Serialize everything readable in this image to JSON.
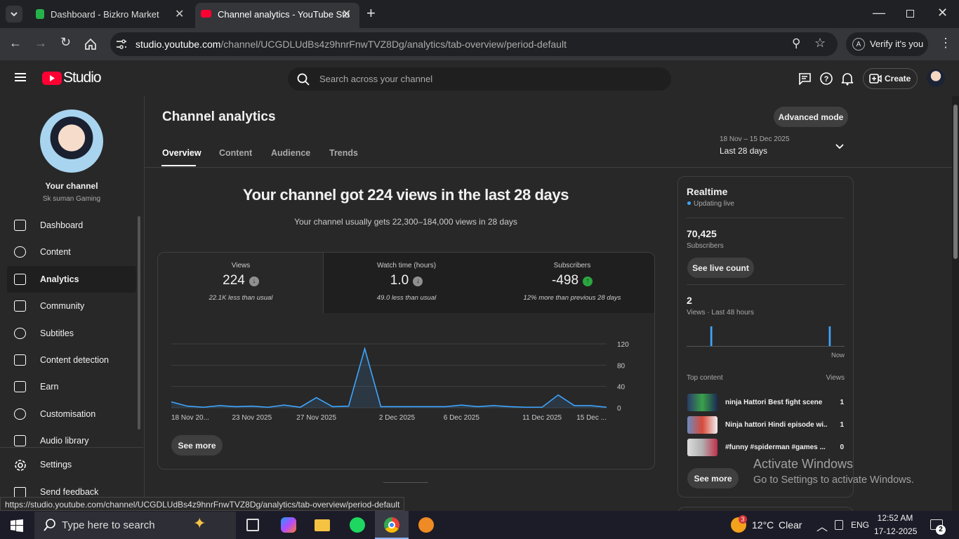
{
  "browser": {
    "tabs": [
      "Dashboard - Bizkro Market",
      "Channel analytics - YouTube Stu"
    ],
    "url_host": "studio.youtube.com",
    "url_path": "/channel/UCGDLUdBs4z9hnrFnwTVZ8Dg/analytics/tab-overview/period-default",
    "profile_letter": "A",
    "verify": "Verify it's you",
    "status_url": "https://studio.youtube.com/channel/UCGDLUdBs4z9hnrFnwTVZ8Dg/analytics/tab-overview/period-default"
  },
  "header": {
    "logo": "Studio",
    "search_placeholder": "Search across your channel",
    "create": "Create"
  },
  "sidebar": {
    "channel_label": "Your channel",
    "channel_name": "Sk suman Gaming",
    "items": [
      "Dashboard",
      "Content",
      "Analytics",
      "Community",
      "Subtitles",
      "Content detection",
      "Earn",
      "Customisation",
      "Audio library"
    ],
    "settings": "Settings",
    "feedback": "Send feedback"
  },
  "page": {
    "title": "Channel analytics",
    "advanced": "Advanced mode",
    "date_range": "18 Nov – 15 Dec 2025",
    "period": "Last 28 days",
    "tabs": [
      "Overview",
      "Content",
      "Audience",
      "Trends"
    ],
    "headline": "Your channel got 224 views in the last 28 days",
    "subline": "Your channel usually gets 22,300–184,000 views in 28 days",
    "metrics": [
      {
        "label": "Views",
        "value": "224",
        "note": "22.1K less than usual"
      },
      {
        "label": "Watch time (hours)",
        "value": "1.0",
        "note": "49.0 less than usual"
      },
      {
        "label": "Subscribers",
        "value": "-498",
        "note": "12% more than previous 28 days"
      }
    ],
    "see_more": "See more"
  },
  "chart_data": [
    {
      "type": "line",
      "color": "#3ea6ff",
      "categories": [
        "18 Nov 20...",
        null,
        null,
        null,
        null,
        "23 Nov 2025",
        null,
        null,
        null,
        "27 Nov 2025",
        null,
        null,
        null,
        null,
        "2 Dec 2025",
        null,
        null,
        null,
        "6 Dec 2025",
        null,
        null,
        null,
        null,
        "11 Dec 2025",
        null,
        null,
        null,
        "15 Dec ..."
      ],
      "values": [
        11,
        3,
        1,
        4,
        2,
        3,
        1,
        5,
        1,
        19,
        2,
        3,
        111,
        2,
        2,
        2,
        2,
        2,
        5,
        2,
        4,
        2,
        1,
        1,
        24,
        4,
        4,
        1
      ],
      "ylim": [
        0,
        120
      ],
      "yticks": [
        0,
        40,
        80,
        120
      ],
      "grid": true
    },
    {
      "type": "bar",
      "color": "#3ea6ff",
      "values": [
        0,
        0,
        0,
        0,
        0,
        0,
        0,
        1,
        0,
        0,
        0,
        0,
        0,
        0,
        0,
        0,
        0,
        0,
        0,
        0,
        0,
        0,
        0,
        0,
        0,
        0,
        0,
        0,
        0,
        0,
        0,
        0,
        0,
        0,
        0,
        0,
        0,
        0,
        0,
        0,
        0,
        0,
        0,
        1,
        0,
        0,
        0,
        0
      ],
      "ylim": [
        0,
        1
      ]
    }
  ],
  "realtime": {
    "title": "Realtime",
    "status": "Updating live",
    "subscribers": "70,425",
    "subscribers_label": "Subscribers",
    "live_count": "See live count",
    "views": "2",
    "views_label": "Views · Last 48 hours",
    "now": "Now",
    "top_content": "Top content",
    "views_header": "Views",
    "items": [
      {
        "title": "ninja Hattori Best fight scene",
        "views": "1"
      },
      {
        "title": "Ninja hattori Hindi episode wi...",
        "views": "1"
      },
      {
        "title": "#funny #spiderman #games ...",
        "views": "0"
      }
    ],
    "see_more": "See more"
  },
  "watermark": {
    "title": "Activate Windows",
    "subtitle": "Go to Settings to activate Windows."
  },
  "taskbar": {
    "search": "Type here to search",
    "weather_badge": "3",
    "temperature": "12°C",
    "condition": "Clear",
    "language": "ENG",
    "time": "12:52 AM",
    "date": "17-12-2025",
    "notifications": "2"
  }
}
